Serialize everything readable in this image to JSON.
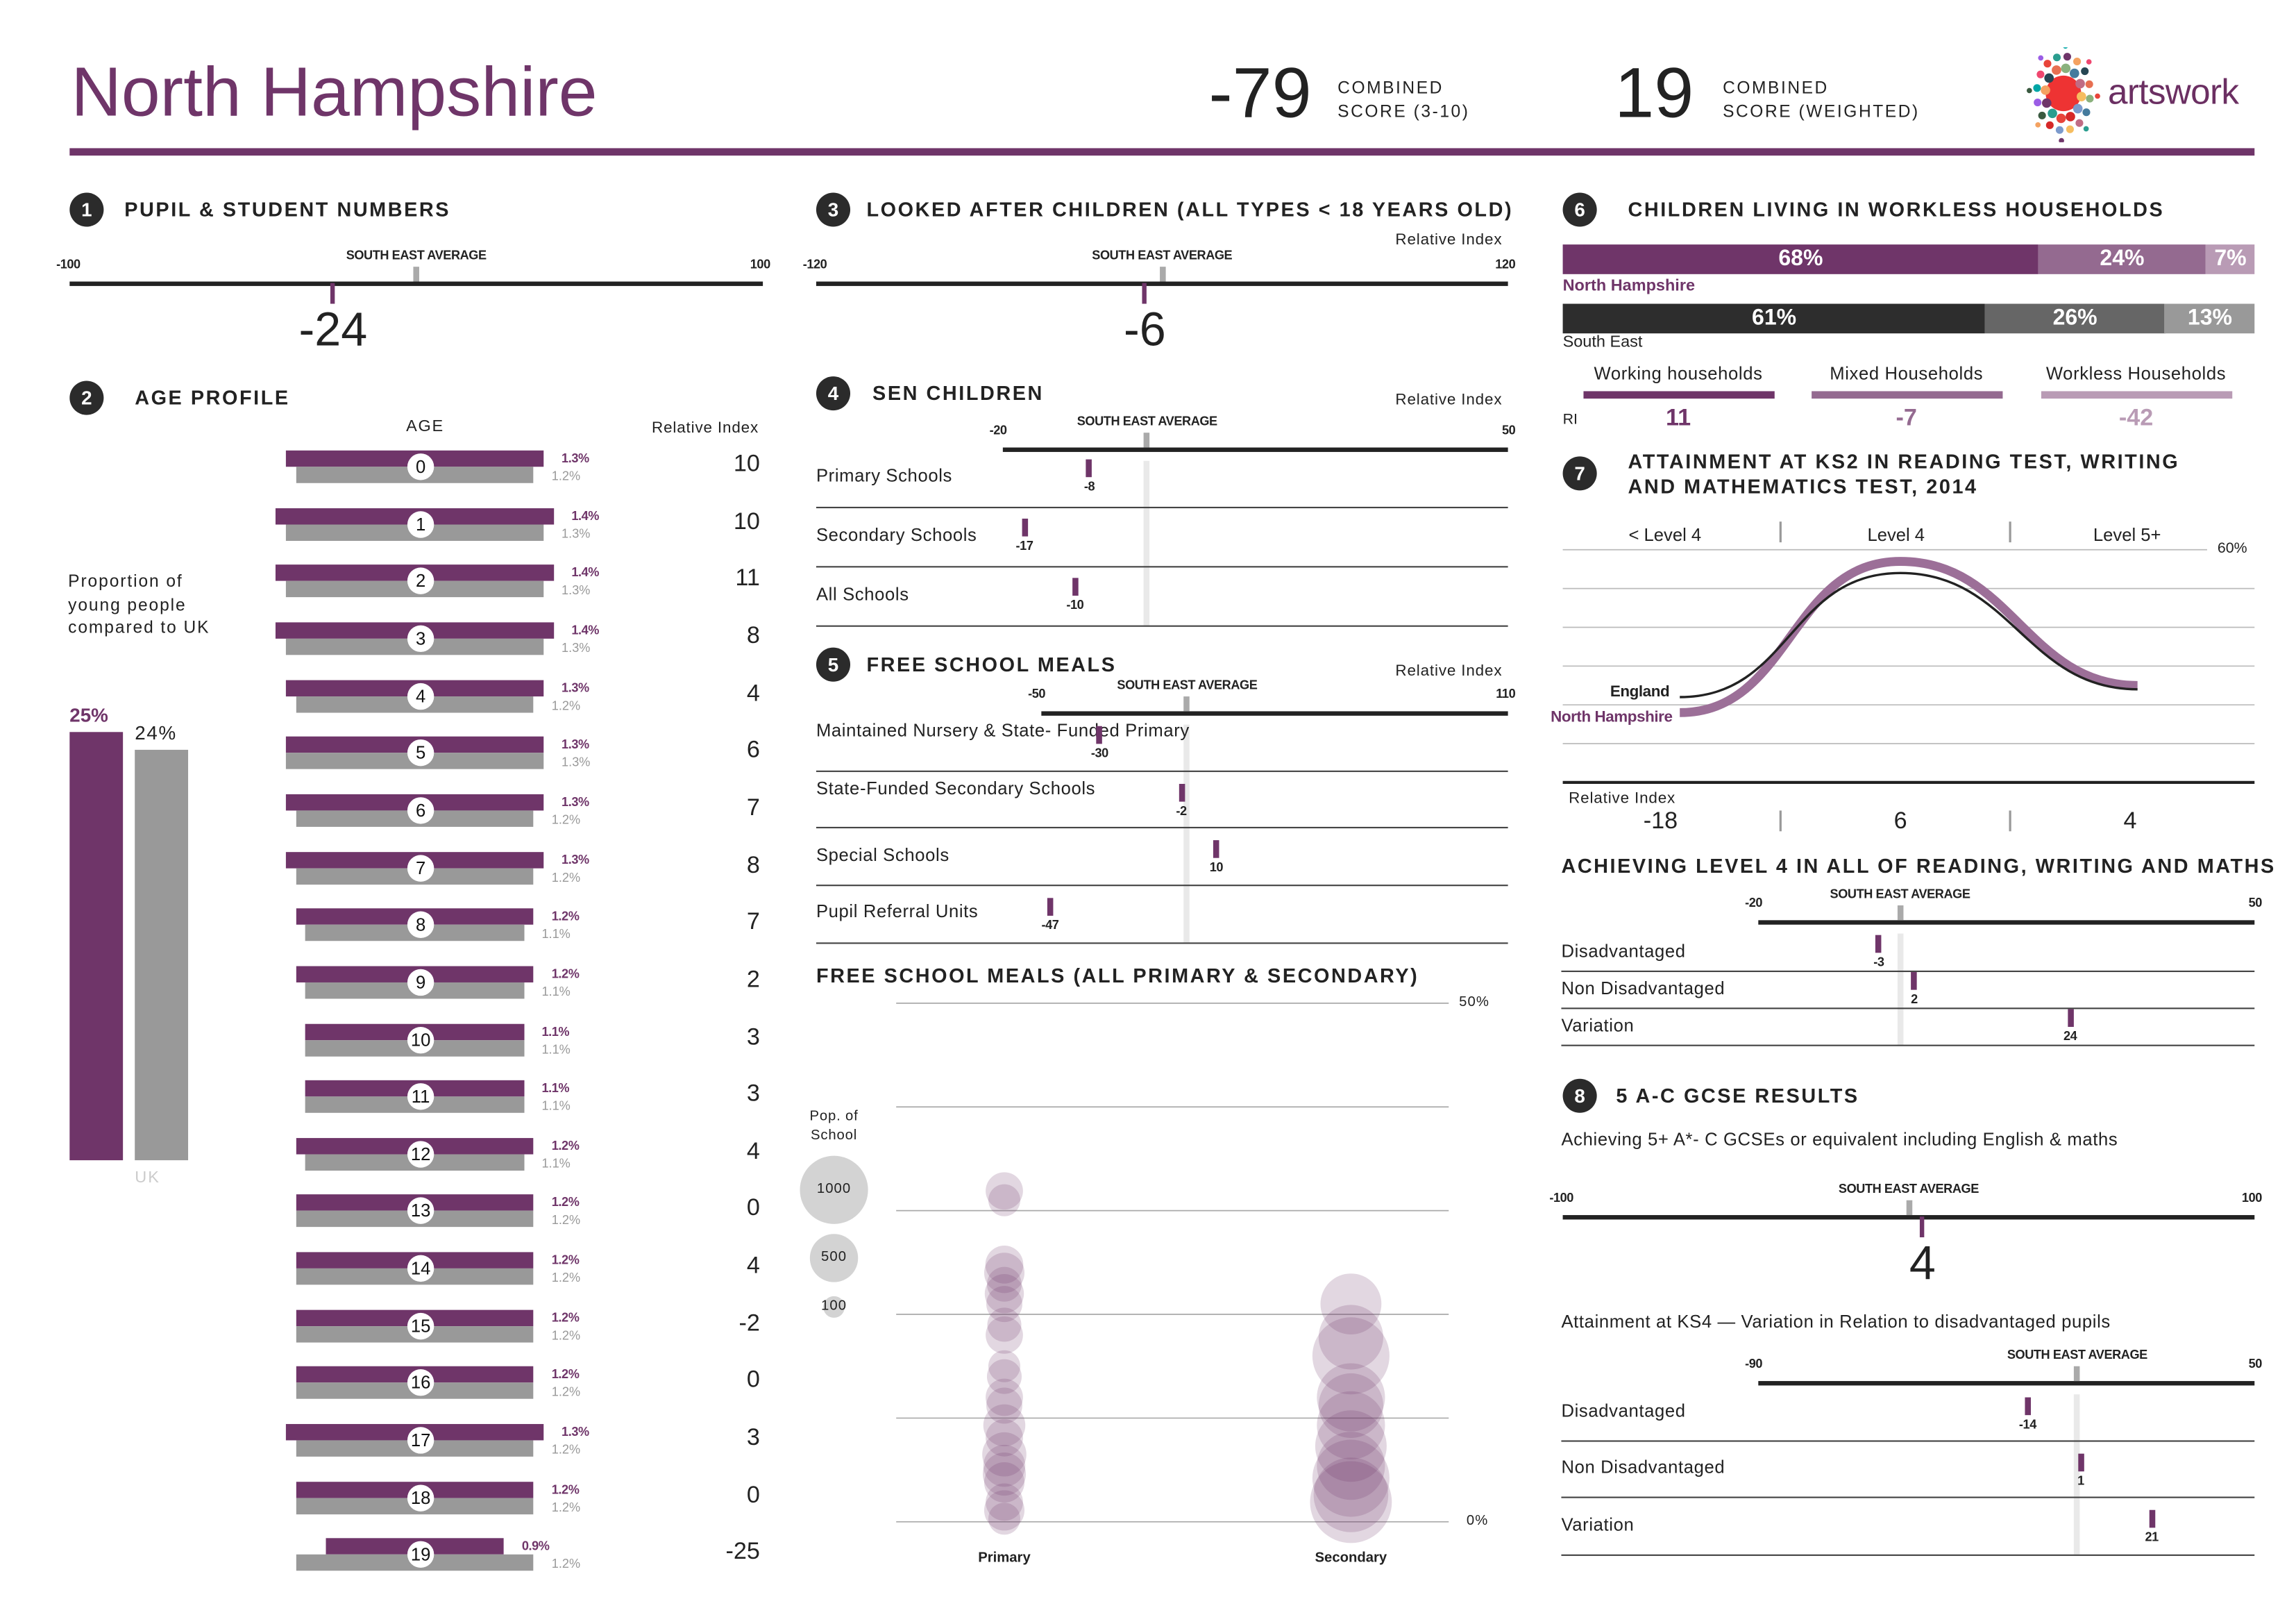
{
  "header": {
    "title": "North Hampshire",
    "scores": [
      {
        "value": "-79",
        "line1": "COMBINED",
        "line2": "SCORE (3-10)"
      },
      {
        "value": "19",
        "line1": "COMBINED",
        "line2": "SCORE (WEIGHTED)"
      }
    ],
    "logo_text": "artswork"
  },
  "colors": {
    "purple": "#6f3569",
    "mid_purple": "#946a90",
    "light_purple": "#b99bb5",
    "grey": "#999999",
    "dark": "#2b2b2b",
    "dark_grey": "#666666",
    "se_marker": "#aaaaaa"
  },
  "s1": {
    "num": "1",
    "title": "PUPIL & STUDENT NUMBERS",
    "axis": {
      "min": -100,
      "max": 100,
      "min_label": "-100",
      "max_label": "100",
      "se_label": "SOUTH EAST AVERAGE",
      "se_value": 0
    },
    "value": -24,
    "value_label": "-24"
  },
  "s3": {
    "num": "3",
    "title": "LOOKED AFTER CHILDREN (ALL TYPES < 18 YEARS OLD)",
    "ri_label": "Relative Index",
    "axis": {
      "min": -120,
      "max": 120,
      "min_label": "-120",
      "max_label": "120",
      "se_label": "SOUTH EAST AVERAGE",
      "se_value": 0
    },
    "value": -6,
    "value_label": "-6"
  },
  "s2": {
    "num": "2",
    "title": "AGE PROFILE",
    "age_header": "AGE",
    "ri_header": "Relative Index",
    "proportion_text": "Proportion of\nyoung people\ncompared to UK",
    "local_pct": 25,
    "local_pct_label": "25%",
    "uk_pct": 24,
    "uk_pct_label": "24%",
    "uk_label": "UK",
    "rows": [
      {
        "age": "0",
        "local": "1.3%",
        "uk": "1.2%",
        "ri": "10"
      },
      {
        "age": "1",
        "local": "1.4%",
        "uk": "1.3%",
        "ri": "10"
      },
      {
        "age": "2",
        "local": "1.4%",
        "uk": "1.3%",
        "ri": "11"
      },
      {
        "age": "3",
        "local": "1.4%",
        "uk": "1.3%",
        "ri": "8"
      },
      {
        "age": "4",
        "local": "1.3%",
        "uk": "1.2%",
        "ri": "4"
      },
      {
        "age": "5",
        "local": "1.3%",
        "uk": "1.3%",
        "ri": "6"
      },
      {
        "age": "6",
        "local": "1.3%",
        "uk": "1.2%",
        "ri": "7"
      },
      {
        "age": "7",
        "local": "1.3%",
        "uk": "1.2%",
        "ri": "8"
      },
      {
        "age": "8",
        "local": "1.2%",
        "uk": "1.1%",
        "ri": "7"
      },
      {
        "age": "9",
        "local": "1.2%",
        "uk": "1.1%",
        "ri": "2"
      },
      {
        "age": "10",
        "local": "1.1%",
        "uk": "1.1%",
        "ri": "3"
      },
      {
        "age": "11",
        "local": "1.1%",
        "uk": "1.1%",
        "ri": "3"
      },
      {
        "age": "12",
        "local": "1.2%",
        "uk": "1.1%",
        "ri": "4"
      },
      {
        "age": "13",
        "local": "1.2%",
        "uk": "1.2%",
        "ri": "0"
      },
      {
        "age": "14",
        "local": "1.2%",
        "uk": "1.2%",
        "ri": "4"
      },
      {
        "age": "15",
        "local": "1.2%",
        "uk": "1.2%",
        "ri": "-2"
      },
      {
        "age": "16",
        "local": "1.2%",
        "uk": "1.2%",
        "ri": "0"
      },
      {
        "age": "17",
        "local": "1.3%",
        "uk": "1.2%",
        "ri": "3"
      },
      {
        "age": "18",
        "local": "1.2%",
        "uk": "1.2%",
        "ri": "0"
      },
      {
        "age": "19",
        "local": "0.9%",
        "uk": "1.2%",
        "ri": "-25"
      }
    ]
  },
  "s4": {
    "num": "4",
    "title": "SEN CHILDREN",
    "ri_label": "Relative Index",
    "axis": {
      "min": -20,
      "max": 50,
      "min_label": "-20",
      "max_label": "50",
      "se_label": "SOUTH EAST AVERAGE",
      "se_value": 0
    },
    "rows": [
      {
        "label": "Primary Schools",
        "value": -8,
        "value_label": "-8"
      },
      {
        "label": "Secondary Schools",
        "value": -17,
        "value_label": "-17"
      },
      {
        "label": "All Schools",
        "value": -10,
        "value_label": "-10"
      }
    ]
  },
  "s5": {
    "num": "5",
    "title": "FREE SCHOOL MEALS",
    "ri_label": "Relative Index",
    "axis": {
      "min": -50,
      "max": 110,
      "min_label": "-50",
      "max_label": "110",
      "se_label": "SOUTH EAST AVERAGE",
      "se_value": 0
    },
    "rows": [
      {
        "label": "Maintained Nursery &\nState- Funded Primary",
        "value": -30,
        "value_label": "-30"
      },
      {
        "label": "State-Funded\nSecondary Schools",
        "value": -2,
        "value_label": "-2"
      },
      {
        "label": "Special Schools",
        "value": 10,
        "value_label": "10"
      },
      {
        "label": "Pupil Referral Units",
        "value": -47,
        "value_label": "-47"
      }
    ]
  },
  "s6": {
    "num": "6",
    "title": "CHILDREN LIVING IN WORKLESS HOUSEHOLDS",
    "local_name": "North Hampshire",
    "region_name": "South East",
    "local": [
      {
        "value": 68,
        "label": "68%"
      },
      {
        "value": 24,
        "label": "24%"
      },
      {
        "value": 7,
        "label": "7%"
      }
    ],
    "region": [
      {
        "value": 61,
        "label": "61%"
      },
      {
        "value": 26,
        "label": "26%"
      },
      {
        "value": 13,
        "label": "13%"
      }
    ],
    "ri_label": "RI",
    "legend": [
      {
        "label": "Working households",
        "ri": "11"
      },
      {
        "label": "Mixed Households",
        "ri": "-7"
      },
      {
        "label": "Workless Households",
        "ri": "-42"
      }
    ]
  },
  "s7": {
    "num": "7",
    "title_line1": "ATTAINMENT AT KS2 IN READING TEST, WRITING",
    "title_line2": "AND MATHEMATICS TEST, 2014",
    "top_label": "60%",
    "ri_label": "Relative Index",
    "ri_values": [
      "-18",
      "6",
      "4"
    ]
  },
  "s7b": {
    "title": "ACHIEVING LEVEL 4 IN ALL OF READING, WRITING AND MATHS",
    "axis": {
      "min": -20,
      "max": 50,
      "min_label": "-20",
      "max_label": "50",
      "se_label": "SOUTH EAST AVERAGE",
      "se_value": 0
    },
    "rows": [
      {
        "label": "Disadvantaged",
        "value": -3,
        "value_label": "-3"
      },
      {
        "label": "Non Disadvantaged",
        "value": 2,
        "value_label": "2"
      },
      {
        "label": "Variation",
        "value": 24,
        "value_label": "24"
      }
    ]
  },
  "s8": {
    "num": "8",
    "title": "5 A-C GCSE RESULTS",
    "subtitle": "Achieving 5+ A*- C GCSEs or equivalent including English & maths",
    "axis": {
      "min": -100,
      "max": 100,
      "min_label": "-100",
      "max_label": "100",
      "se_label": "SOUTH EAST AVERAGE",
      "se_value": 0
    },
    "value": 4,
    "value_label": "4",
    "ks4_title": "Attainment at KS4 — Variation in Relation to disadvantaged pupils",
    "ks4_axis": {
      "min": -90,
      "max": 50,
      "min_label": "-90",
      "max_label": "50",
      "se_label": "SOUTH EAST AVERAGE",
      "se_value": 0
    },
    "ks4_rows": [
      {
        "label": "Disadvantaged",
        "value": -14,
        "value_label": "-14"
      },
      {
        "label": "Non Disadvantaged",
        "value": 1,
        "value_label": "1"
      },
      {
        "label": "Variation",
        "value": 21,
        "value_label": "21"
      }
    ]
  },
  "chart_data": [
    {
      "type": "line",
      "categories": [
        "< Level 4",
        "Level 4",
        "Level 5+"
      ],
      "ylim": [
        0,
        60
      ],
      "grid": true,
      "series": [
        {
          "name": "England",
          "values": [
            22,
            54,
            24
          ],
          "color": "#222222"
        },
        {
          "name": "North Hampshire",
          "values": [
            18,
            57,
            25
          ],
          "color": "#9c6f98"
        }
      ]
    },
    {
      "type": "scatter",
      "title": "FREE SCHOOL MEALS (ALL PRIMARY & SECONDARY)",
      "categories": [
        "Primary",
        "Secondary"
      ],
      "ylim": [
        0,
        50
      ],
      "ytick_labels": [
        "0%",
        "50%"
      ],
      "size_legend_title": "Pop. of\nSchool",
      "size_legend": [
        {
          "label": "1000",
          "value": 1000
        },
        {
          "label": "500",
          "value": 500
        },
        {
          "label": "100",
          "value": 100
        }
      ],
      "points": {
        "Primary": [
          [
            31.9,
            300
          ],
          [
            31.0,
            220
          ],
          [
            24.8,
            310
          ],
          [
            24.0,
            350
          ],
          [
            22.9,
            260
          ],
          [
            22.0,
            330
          ],
          [
            21.0,
            280
          ],
          [
            19.0,
            250
          ],
          [
            18.0,
            300
          ],
          [
            15.0,
            220
          ],
          [
            14.0,
            260
          ],
          [
            12.0,
            300
          ],
          [
            11.2,
            280
          ],
          [
            9.3,
            380
          ],
          [
            8.1,
            300
          ],
          [
            6.5,
            420
          ],
          [
            5.4,
            380
          ],
          [
            4.6,
            400
          ],
          [
            3.8,
            350
          ],
          [
            1.9,
            300
          ],
          [
            1.1,
            350
          ],
          [
            0.3,
            220
          ]
        ],
        "Secondary": [
          [
            21.0,
            800
          ],
          [
            17.8,
            900
          ],
          [
            16.0,
            1280
          ],
          [
            12.0,
            1000
          ],
          [
            11.2,
            900
          ],
          [
            9.3,
            1000
          ],
          [
            7.3,
            1100
          ],
          [
            5.4,
            1000
          ],
          [
            4.2,
            1280
          ],
          [
            2.6,
            1200
          ],
          [
            1.9,
            1440
          ]
        ]
      }
    }
  ]
}
